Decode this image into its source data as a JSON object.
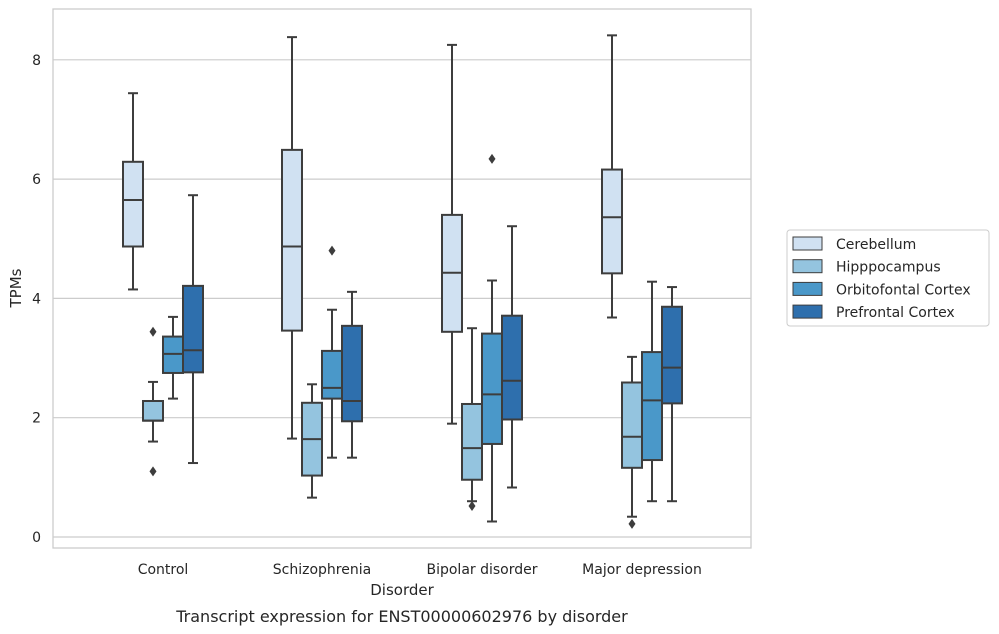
{
  "chart_data": {
    "type": "box",
    "title": "Transcript expression for ENST00000602976 by disorder",
    "xlabel": "Disorder",
    "ylabel": "TPMs",
    "ylim": [
      -0.2,
      8.85
    ],
    "yticks": [
      0,
      2,
      4,
      6,
      8
    ],
    "grid": "horizontal",
    "legend_position": "right",
    "categories": [
      "Control",
      "Schizophrenia",
      "Bipolar disorder",
      "Major depression"
    ],
    "series": [
      {
        "name": "Cerebellum",
        "color": "#d0e1f2",
        "boxes": [
          {
            "whisker_low": 4.15,
            "q1": 4.87,
            "median": 5.65,
            "q3": 6.29,
            "whisker_high": 7.44,
            "outliers": []
          },
          {
            "whisker_low": 1.65,
            "q1": 3.46,
            "median": 4.87,
            "q3": 6.49,
            "whisker_high": 8.38,
            "outliers": []
          },
          {
            "whisker_low": 1.9,
            "q1": 3.44,
            "median": 4.43,
            "q3": 5.4,
            "whisker_high": 8.25,
            "outliers": []
          },
          {
            "whisker_low": 3.68,
            "q1": 4.42,
            "median": 5.36,
            "q3": 6.16,
            "whisker_high": 8.41,
            "outliers": []
          }
        ]
      },
      {
        "name": "Hipppocampus",
        "color": "#94c4df",
        "boxes": [
          {
            "whisker_low": 1.6,
            "q1": 1.95,
            "median": 1.95,
            "q3": 2.28,
            "whisker_high": 2.6,
            "outliers": [
              1.1,
              3.44
            ]
          },
          {
            "whisker_low": 0.66,
            "q1": 1.03,
            "median": 1.64,
            "q3": 2.25,
            "whisker_high": 2.56,
            "outliers": []
          },
          {
            "whisker_low": 0.6,
            "q1": 0.96,
            "median": 1.49,
            "q3": 2.23,
            "whisker_high": 3.5,
            "outliers": [
              0.52
            ]
          },
          {
            "whisker_low": 0.34,
            "q1": 1.16,
            "median": 1.68,
            "q3": 2.59,
            "whisker_high": 3.02,
            "outliers": [
              0.22
            ]
          }
        ]
      },
      {
        "name": "Orbitofontal Cortex",
        "color": "#4a98c9",
        "boxes": [
          {
            "whisker_low": 2.32,
            "q1": 2.75,
            "median": 3.07,
            "q3": 3.36,
            "whisker_high": 3.69,
            "outliers": []
          },
          {
            "whisker_low": 1.33,
            "q1": 2.32,
            "median": 2.5,
            "q3": 3.12,
            "whisker_high": 3.81,
            "outliers": [
              4.8
            ]
          },
          {
            "whisker_low": 0.26,
            "q1": 1.56,
            "median": 2.39,
            "q3": 3.41,
            "whisker_high": 4.3,
            "outliers": [
              6.34
            ]
          },
          {
            "whisker_low": 0.6,
            "q1": 1.29,
            "median": 2.29,
            "q3": 3.1,
            "whisker_high": 4.28,
            "outliers": []
          }
        ]
      },
      {
        "name": "Prefrontal Cortex",
        "color": "#2e6fad",
        "boxes": [
          {
            "whisker_low": 1.24,
            "q1": 2.76,
            "median": 3.13,
            "q3": 4.21,
            "whisker_high": 5.73,
            "outliers": []
          },
          {
            "whisker_low": 1.33,
            "q1": 1.94,
            "median": 2.28,
            "q3": 3.54,
            "whisker_high": 4.11,
            "outliers": []
          },
          {
            "whisker_low": 0.83,
            "q1": 1.97,
            "median": 2.62,
            "q3": 3.71,
            "whisker_high": 5.21,
            "outliers": []
          },
          {
            "whisker_low": 0.6,
            "q1": 2.24,
            "median": 2.84,
            "q3": 3.86,
            "whisker_high": 4.19,
            "outliers": []
          }
        ]
      }
    ]
  }
}
